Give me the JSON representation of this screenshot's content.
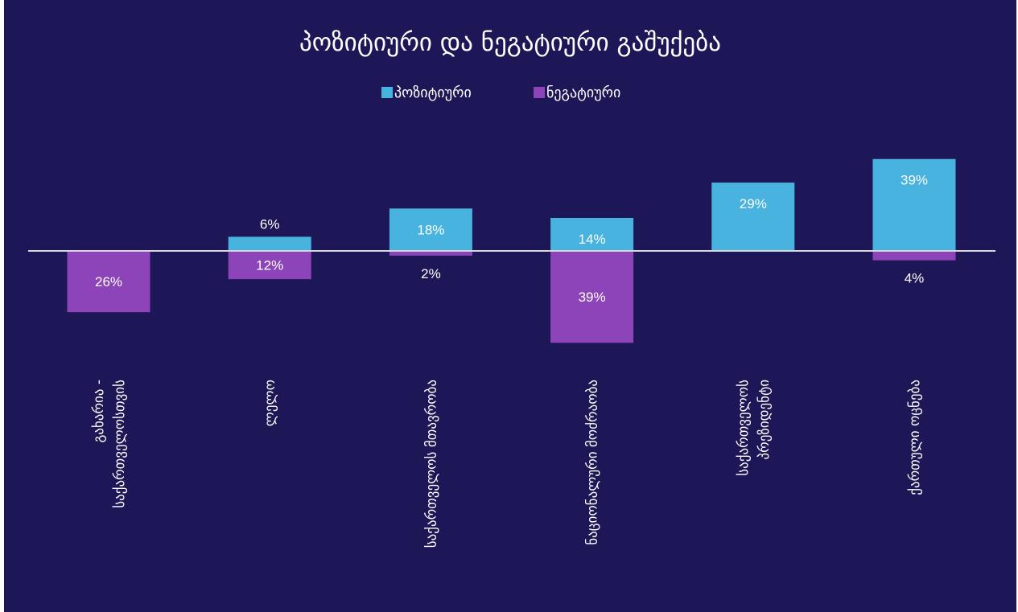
{
  "chart_data": {
    "type": "bar",
    "title": "პოზიტიური და ნეგატიური გაშუქება",
    "categories": [
      "გახარია - საქართველოსთვის",
      "ლელო",
      "საქართველოს მთავრობა",
      "ნაციონალური მოძრაობა",
      "საქართველოს პრეზიდენტი",
      "ქართული ოცნება"
    ],
    "category_lines": [
      [
        "გახარია -",
        "საქართველოსთვის"
      ],
      [
        "ლელო"
      ],
      [
        "საქართველოს მთავრობა"
      ],
      [
        "ნაციონალური მოძრაობა"
      ],
      [
        "საქართველოს",
        "პრეზიდენტი"
      ],
      [
        "ქართული ოცნება"
      ]
    ],
    "series": [
      {
        "name": "პოზიტიური",
        "color": "#48b3df",
        "values": [
          0,
          6,
          18,
          14,
          29,
          39
        ],
        "labels": [
          "",
          "6%",
          "18%",
          "14%",
          "29%",
          "39%"
        ]
      },
      {
        "name": "ნეგატიური",
        "color": "#8e44b9",
        "values": [
          -26,
          -12,
          -2,
          -39,
          0,
          -4
        ],
        "labels": [
          "26%",
          "12%",
          "2%",
          "39%",
          "",
          "4%"
        ]
      }
    ],
    "ylim": [
      -50,
      50
    ],
    "grid": false,
    "legend": "top-center",
    "background": "#1e1757",
    "axis_color": "#d9d9d9"
  }
}
